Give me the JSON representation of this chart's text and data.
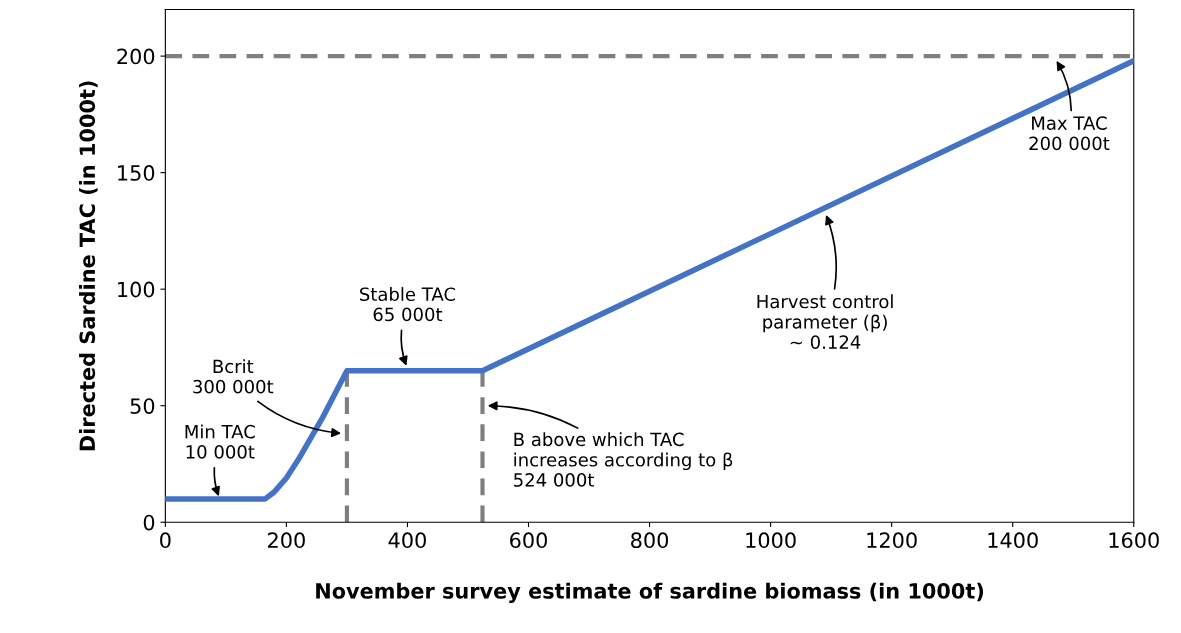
{
  "chart_data": {
    "type": "line",
    "xlabel": "November survey estimate of sardine biomass (in 1000t)",
    "ylabel": "Directed Sardine TAC (in 1000t)",
    "series": [
      {
        "color": "#4472c4",
        "x": [
          0,
          165,
          180,
          200,
          220,
          240,
          260,
          280,
          300,
          524,
          1600
        ],
        "values": [
          10,
          10,
          13,
          19,
          27,
          36,
          45,
          55,
          65,
          65,
          198
        ]
      },
      {
        "color": "#7f7f7f",
        "line_style": "dashed",
        "x": [
          300,
          300
        ],
        "values": [
          0,
          65
        ]
      },
      {
        "color": "#7f7f7f",
        "line_style": "dashed",
        "x": [
          524,
          524
        ],
        "values": [
          0,
          65
        ]
      }
    ],
    "ref_lines": [
      {
        "axis": "y",
        "value": 200,
        "color": "#7f7f7f",
        "line_style": "dashed"
      }
    ],
    "annotations": [
      {
        "text": "Min TAC\n10 000t",
        "x": 90,
        "y": 10
      },
      {
        "text": "Bcrit\n300 000t",
        "x": 295,
        "y": 38
      },
      {
        "text": "Stable TAC\n65 000t",
        "x": 400,
        "y": 66
      },
      {
        "text": "B above which TAC\nincreases according to β\n524 000t",
        "x": 528,
        "y": 50
      },
      {
        "text": "Harvest control\nparameter (β)\n~ 0.124",
        "x": 1090,
        "y": 133
      },
      {
        "text": "Max TAC\n200 000t",
        "x": 1470,
        "y": 199
      }
    ],
    "xlim": [
      0,
      1600
    ],
    "ylim": [
      0,
      220
    ],
    "xticks": [
      0,
      200,
      400,
      600,
      800,
      1000,
      1200,
      1400,
      1600
    ],
    "yticks": [
      0,
      50,
      100,
      150,
      200
    ],
    "grid": false,
    "legend": false
  }
}
